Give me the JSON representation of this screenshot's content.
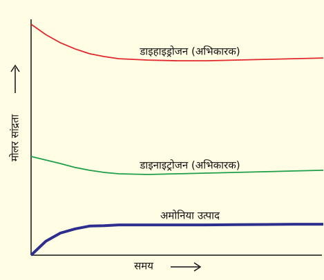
{
  "chart_data": {
    "type": "line",
    "x_label": "समय",
    "y_label": "मोलर सांद्रता",
    "x": [
      0,
      5,
      10,
      15,
      20,
      25,
      30,
      40,
      50,
      60,
      70,
      80,
      90,
      100
    ],
    "xlim": [
      0,
      100
    ],
    "ylim": [
      0,
      100
    ],
    "series": [
      {
        "name": "डाइहाइड्रोजन (अभिकारक)",
        "color": "#e3262b",
        "values": [
          98.5,
          94.1,
          90.6,
          88.0,
          85.9,
          84.7,
          83.8,
          83.2,
          82.9,
          82.9,
          83.2,
          83.5,
          83.8,
          84.1
        ]
      },
      {
        "name": "डाइनाइट्रोजन (अभिकारक)",
        "color": "#1c9e4a",
        "values": [
          42.1,
          40.6,
          39.1,
          37.4,
          36.2,
          35.3,
          34.7,
          34.4,
          34.7,
          35.0,
          35.3,
          35.6,
          35.9,
          36.2
        ]
      },
      {
        "name": "अमोनिया उत्पाद",
        "color": "#2d2f8e",
        "values": [
          0,
          5.9,
          9.4,
          11.2,
          12.4,
          12.6,
          12.9,
          12.9,
          12.9,
          12.9,
          13.0,
          13.1,
          13.2,
          13.2
        ]
      }
    ]
  }
}
